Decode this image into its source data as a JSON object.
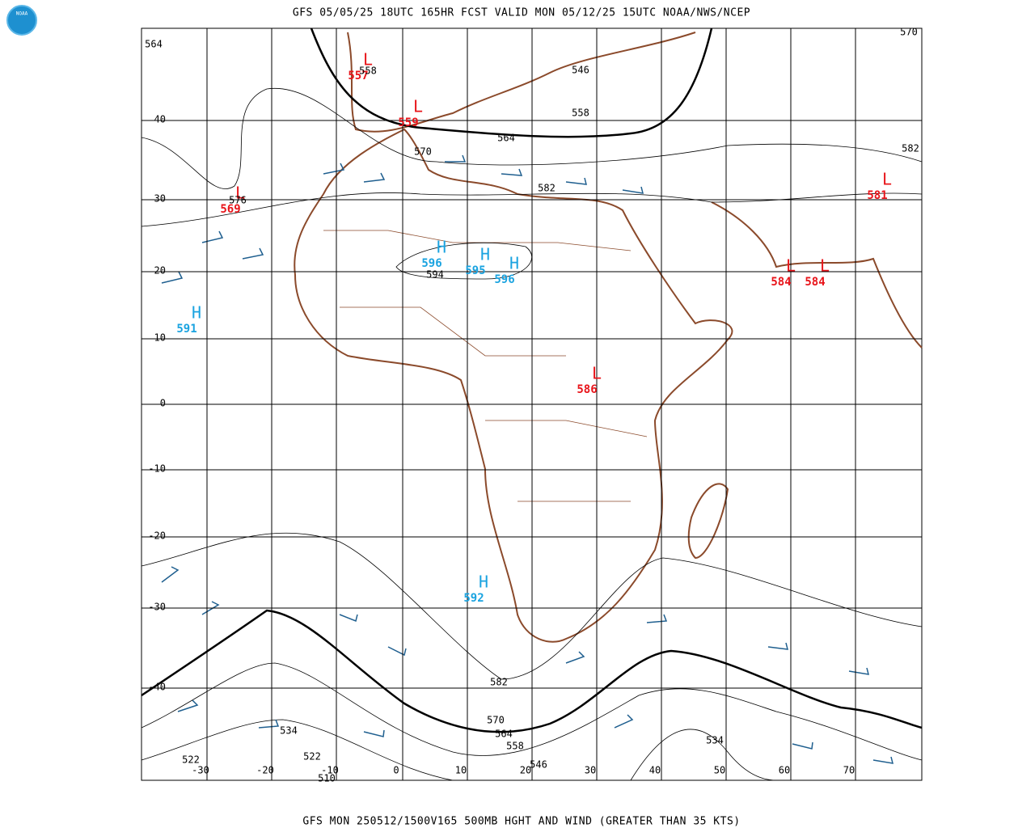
{
  "header": {
    "title": "GFS 05/05/25 18UTC 165HR FCST VALID MON 05/12/25 15UTC NOAA/NWS/NCEP"
  },
  "footer": {
    "text": "GFS MON 250512/1500V165 500MB HGHT AND WIND (GREATER THAN 35 KTS)"
  },
  "logo": {
    "text": "NOAA"
  },
  "latitudes": [
    "40",
    "30",
    "20",
    "10",
    "0",
    "-10",
    "-20",
    "-30",
    "-40"
  ],
  "longitudes": [
    "-30",
    "-20",
    "-10",
    "0",
    "10",
    "20",
    "30",
    "40",
    "50",
    "60",
    "70"
  ],
  "centers": [
    {
      "letter": "L",
      "value": "557"
    },
    {
      "letter": "L",
      "value": "559"
    },
    {
      "letter": "L",
      "value": "569"
    },
    {
      "letter": "L",
      "value": "581"
    },
    {
      "letter": "L",
      "value": "584"
    },
    {
      "letter": "L",
      "value": "584"
    },
    {
      "letter": "L",
      "value": "586"
    },
    {
      "letter": "H",
      "value": "596"
    },
    {
      "letter": "H",
      "value": "595"
    },
    {
      "letter": "H",
      "value": "596"
    },
    {
      "letter": "H",
      "value": "591"
    },
    {
      "letter": "H",
      "value": "592"
    }
  ],
  "contour_labels": [
    "564",
    "558",
    "570",
    "546",
    "558",
    "564",
    "570",
    "582",
    "582",
    "576",
    "594",
    "582",
    "570",
    "564",
    "558",
    "546",
    "534",
    "534",
    "522",
    "522",
    "510"
  ]
}
